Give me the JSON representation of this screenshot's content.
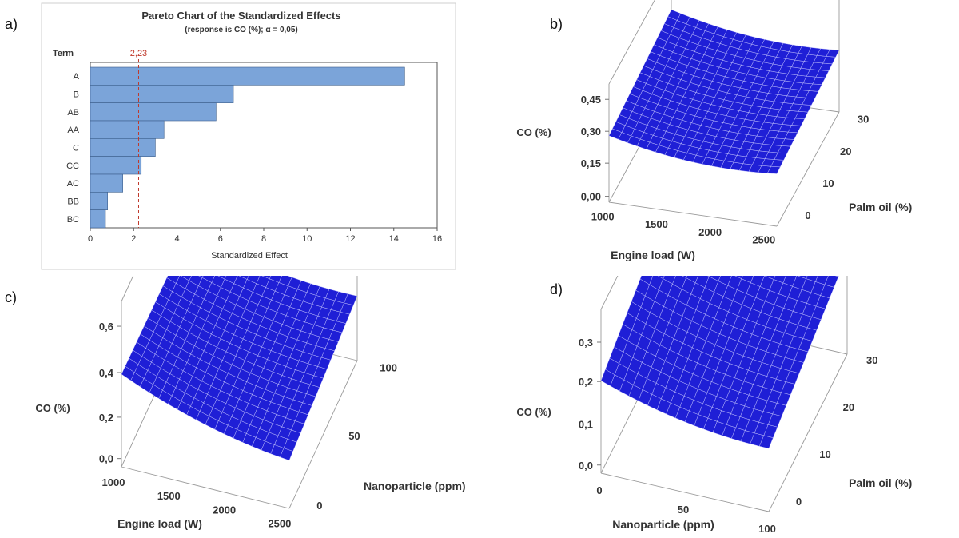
{
  "panel_labels": {
    "a": "a)",
    "b": "b)",
    "c": "c)",
    "d": "d)"
  },
  "chart_data": [
    {
      "type": "bar",
      "orientation": "horizontal",
      "title": "Pareto Chart of the Standardized Effects",
      "subtitle": "(response is CO (%); α = 0,05)",
      "ylabel": "Term",
      "xlabel": "Standardized Effect",
      "categories": [
        "A",
        "B",
        "AB",
        "AA",
        "C",
        "CC",
        "AC",
        "BB",
        "BC"
      ],
      "values": [
        14.5,
        6.6,
        5.8,
        3.4,
        3.0,
        2.35,
        1.5,
        0.8,
        0.7
      ],
      "xlim": [
        0,
        16
      ],
      "xticks": [
        "0",
        "2",
        "4",
        "6",
        "8",
        "10",
        "12",
        "14",
        "16"
      ],
      "reference_line": {
        "value": 2.23,
        "label": "2,23",
        "color": "#c0392b"
      },
      "bar_color": "#7ba4d9"
    },
    {
      "type": "surface",
      "xlabel": "Engine load (W)",
      "ylabel": "Palm oil (%)",
      "zlabel": "CO (%)",
      "xticks": [
        "1000",
        "1500",
        "2000",
        "2500"
      ],
      "yticks": [
        "0",
        "10",
        "20",
        "30"
      ],
      "zticks": [
        "0,00",
        "0,15",
        "0,30",
        "0,45"
      ],
      "surface_color": "#1f1fd6"
    },
    {
      "type": "surface",
      "xlabel": "Engine load (W)",
      "ylabel": "Nanoparticle (ppm)",
      "zlabel": "CO (%)",
      "xticks": [
        "1000",
        "1500",
        "2000",
        "2500"
      ],
      "yticks": [
        "0",
        "50",
        "100"
      ],
      "zticks": [
        "0,0",
        "0,2",
        "0,4",
        "0,6"
      ],
      "surface_color": "#1f1fd6"
    },
    {
      "type": "surface",
      "xlabel": "Nanoparticle (ppm)",
      "ylabel": "Palm oil (%)",
      "zlabel": "CO (%)",
      "xticks": [
        "0",
        "50",
        "100"
      ],
      "yticks": [
        "0",
        "10",
        "20",
        "30"
      ],
      "zticks": [
        "0,0",
        "0,1",
        "0,2",
        "0,3"
      ],
      "surface_color": "#1f1fd6"
    }
  ]
}
